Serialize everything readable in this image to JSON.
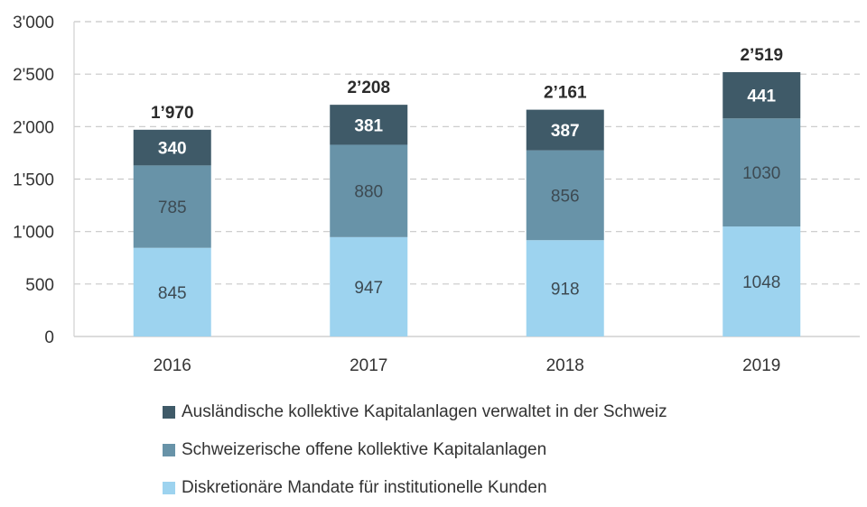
{
  "chart_data": {
    "type": "bar",
    "stacked": true,
    "categories": [
      "2016",
      "2017",
      "2018",
      "2019"
    ],
    "series": [
      {
        "name": "Diskretionäre Mandate für institutionelle Kunden",
        "values": [
          845,
          947,
          918,
          1048
        ],
        "color": "#9dd3ef",
        "label_color": "#3d4a52"
      },
      {
        "name": "Schweizerische offene kollektive Kapitalanlagen",
        "values": [
          785,
          880,
          856,
          1030
        ],
        "color": "#6893a8",
        "label_color": "#3d4a52"
      },
      {
        "name": "Ausländische kollektive Kapitalanlagen verwaltet in der Schweiz",
        "values": [
          340,
          381,
          387,
          441
        ],
        "color": "#3f5a68",
        "label_color": "#ffffff"
      }
    ],
    "totals": [
      "1’970",
      "2’208",
      "2’161",
      "2’519"
    ],
    "yticks": [
      0,
      500,
      1000,
      1500,
      2000,
      2500,
      3000
    ],
    "ytick_labels": [
      "0",
      "500",
      "1'000",
      "1'500",
      "2'000",
      "2'500",
      "3'000"
    ],
    "ylim": [
      0,
      3000
    ],
    "grid": "horizontal dashed",
    "legend_placement": "bottom",
    "title": "",
    "xlabel": "",
    "ylabel": ""
  }
}
